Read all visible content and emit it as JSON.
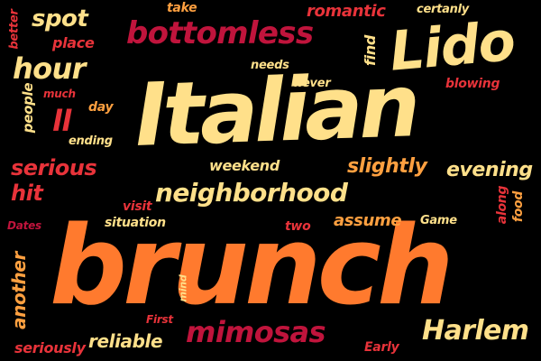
{
  "palette": {
    "cream": "#FFE08A",
    "orange": "#FF7A2E",
    "orange_light": "#FFA040",
    "red": "#E8333A",
    "crimson": "#C0143C",
    "background": "#000000"
  },
  "words": {
    "brunch": "brunch",
    "italian": "Italian",
    "lido": "Lido",
    "neighborhood": "neighborhood",
    "bottomless": "bottomless",
    "mimosas": "mimosas",
    "harlem": "Harlem",
    "hour": "hour",
    "spot": "spot",
    "serious": "serious",
    "hit": "hit",
    "ll": "ll",
    "reliable": "reliable",
    "romantic": "romantic",
    "evening": "evening",
    "slightly": "slightly",
    "weekend": "weekend",
    "assume": "assume",
    "another": "another",
    "seriously": "seriously",
    "place": "place",
    "people": "people",
    "much": "much",
    "better": "better",
    "take": "take",
    "certainly": "certanly",
    "find": "find",
    "needs": "needs",
    "never": "never",
    "blowing": "blowing",
    "day": "day",
    "ending": "ending",
    "visit": "visit",
    "situation": "situation",
    "two": "two",
    "game": "Game",
    "along": "along",
    "food": "food",
    "dates": "Dates",
    "mind": "mind",
    "first": "First",
    "early": "Early"
  }
}
